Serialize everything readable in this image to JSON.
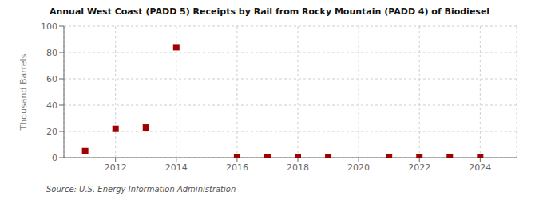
{
  "chart_data": {
    "type": "scatter",
    "title": "Annual West Coast (PADD 5) Receipts by Rail from Rocky Mountain (PADD 4) of Biodiesel",
    "ylabel": "Thousand Barrels",
    "source": "Source: U.S. Energy Information Administration",
    "x": [
      2011,
      2012,
      2013,
      2014,
      2016,
      2017,
      2018,
      2019,
      2021,
      2022,
      2023,
      2024
    ],
    "values": [
      5,
      22,
      23,
      84,
      0.3,
      0.3,
      0.3,
      0.3,
      0.3,
      0.3,
      0.3,
      0.3
    ],
    "color": "#a00000",
    "marker": "square",
    "xlim": [
      2010.3,
      2025.2
    ],
    "ylim": [
      0,
      100
    ],
    "xticks": [
      2012,
      2014,
      2016,
      2018,
      2020,
      2022,
      2024
    ],
    "yticks": [
      0,
      20,
      40,
      60,
      80,
      100
    ],
    "grid": true
  }
}
